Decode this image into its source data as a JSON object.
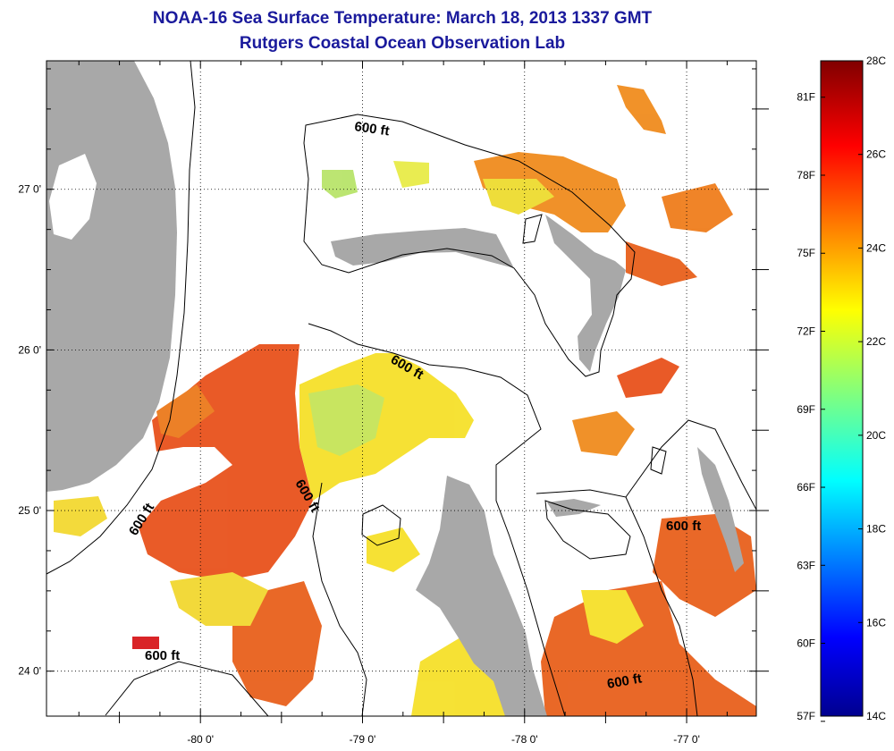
{
  "header": {
    "title": "NOAA-16 Sea Surface Temperature:  March 18, 2013 1337 GMT",
    "subtitle": "Rutgers Coastal Ocean Observation Lab"
  },
  "map": {
    "lat_ticks": [
      {
        "value": 27.0,
        "label": "27 0'"
      },
      {
        "value": 26.0,
        "label": "26 0'"
      },
      {
        "value": 25.0,
        "label": "25 0'"
      },
      {
        "value": 24.0,
        "label": "24 0'"
      }
    ],
    "lon_ticks": [
      {
        "value": -80.0,
        "label": "-80 0'"
      },
      {
        "value": -79.0,
        "label": "-79 0'"
      },
      {
        "value": -78.0,
        "label": "-78 0'"
      },
      {
        "value": -77.0,
        "label": "-77 0'"
      }
    ],
    "lat_range": [
      23.72,
      27.8
    ],
    "lon_range": [
      -80.95,
      -76.57
    ],
    "isobath_label": "600 ft",
    "colors": {
      "land": "#a8a8a8",
      "axes_label": "#000000",
      "warm": "#e8521c",
      "mild": "#f08c1e",
      "cool": "#f6e02a",
      "cold": "#b8e46a"
    }
  },
  "colorbar": {
    "celsius_labels": [
      "28C",
      "26C",
      "24C",
      "22C",
      "20C",
      "18C",
      "16C",
      "14C"
    ],
    "celsius_values": [
      28,
      26,
      24,
      22,
      20,
      18,
      16,
      14
    ],
    "fahrenheit_labels": [
      "81F",
      "78F",
      "75F",
      "72F",
      "69F",
      "66F",
      "63F",
      "60F",
      "57F"
    ],
    "fahrenheit_values": [
      81,
      78,
      75,
      72,
      69,
      66,
      63,
      60,
      57
    ],
    "range_c": [
      14,
      28
    ]
  }
}
